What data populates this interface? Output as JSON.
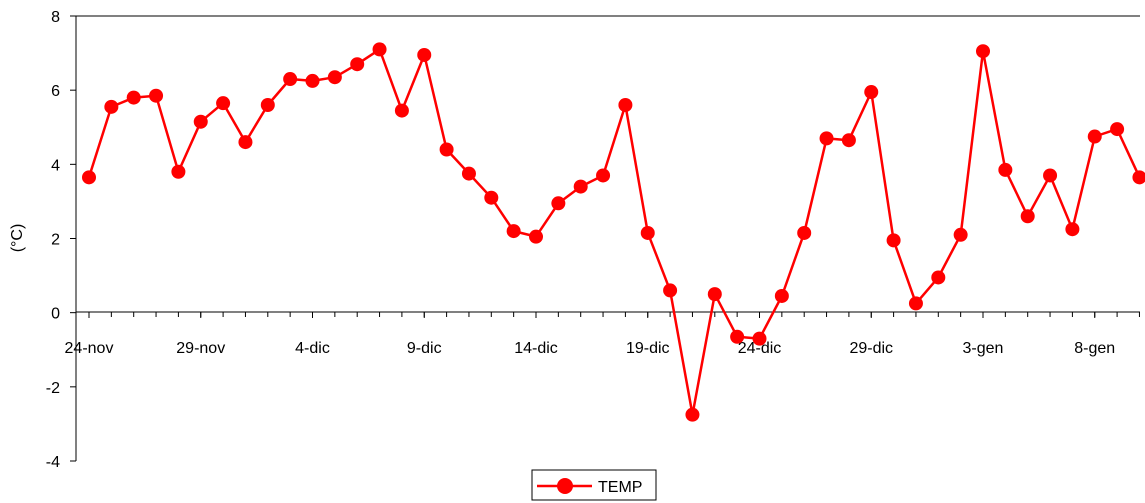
{
  "chart_data": {
    "type": "line",
    "title": "",
    "xlabel": "",
    "ylabel": "(°C)",
    "ylim": [
      -4,
      8
    ],
    "yticks": [
      8,
      6,
      4,
      2,
      0,
      -2,
      -4
    ],
    "xtick_labels": [
      "24-nov",
      "29-nov",
      "4-dic",
      "9-dic",
      "14-dic",
      "19-dic",
      "24-dic",
      "29-dic",
      "3-gen",
      "8-gen"
    ],
    "x_start": "24-nov",
    "x_end": "10-gen",
    "grid": false,
    "legend": {
      "position": "bottom-center"
    },
    "colors": {
      "series": "#ff0000",
      "axis": "#000000"
    },
    "series": [
      {
        "name": "TEMP",
        "marker": "circle",
        "x": [
          "24-nov",
          "25-nov",
          "26-nov",
          "27-nov",
          "28-nov",
          "29-nov",
          "30-nov",
          "1-dic",
          "2-dic",
          "3-dic",
          "4-dic",
          "5-dic",
          "6-dic",
          "7-dic",
          "8-dic",
          "9-dic",
          "10-dic",
          "11-dic",
          "12-dic",
          "13-dic",
          "14-dic",
          "15-dic",
          "16-dic",
          "17-dic",
          "18-dic",
          "19-dic",
          "20-dic",
          "21-dic",
          "22-dic",
          "23-dic",
          "24-dic",
          "25-dic",
          "26-dic",
          "27-dic",
          "28-dic",
          "29-dic",
          "30-dic",
          "31-dic",
          "1-gen",
          "2-gen",
          "3-gen",
          "4-gen",
          "5-gen",
          "6-gen",
          "7-gen",
          "8-gen",
          "9-gen",
          "10-gen"
        ],
        "values": [
          3.65,
          5.55,
          5.8,
          5.85,
          3.8,
          5.15,
          5.65,
          4.6,
          5.6,
          6.3,
          6.25,
          6.35,
          6.7,
          7.1,
          5.45,
          6.95,
          4.4,
          3.75,
          3.1,
          2.2,
          2.05,
          2.95,
          3.4,
          3.7,
          5.6,
          2.15,
          0.6,
          -2.75,
          0.5,
          -0.65,
          -0.7,
          0.45,
          2.15,
          4.7,
          4.65,
          5.95,
          1.95,
          0.25,
          0.95,
          2.1,
          7.05,
          3.85,
          2.6,
          3.7,
          2.25,
          4.75,
          4.95,
          3.65
        ]
      }
    ]
  }
}
